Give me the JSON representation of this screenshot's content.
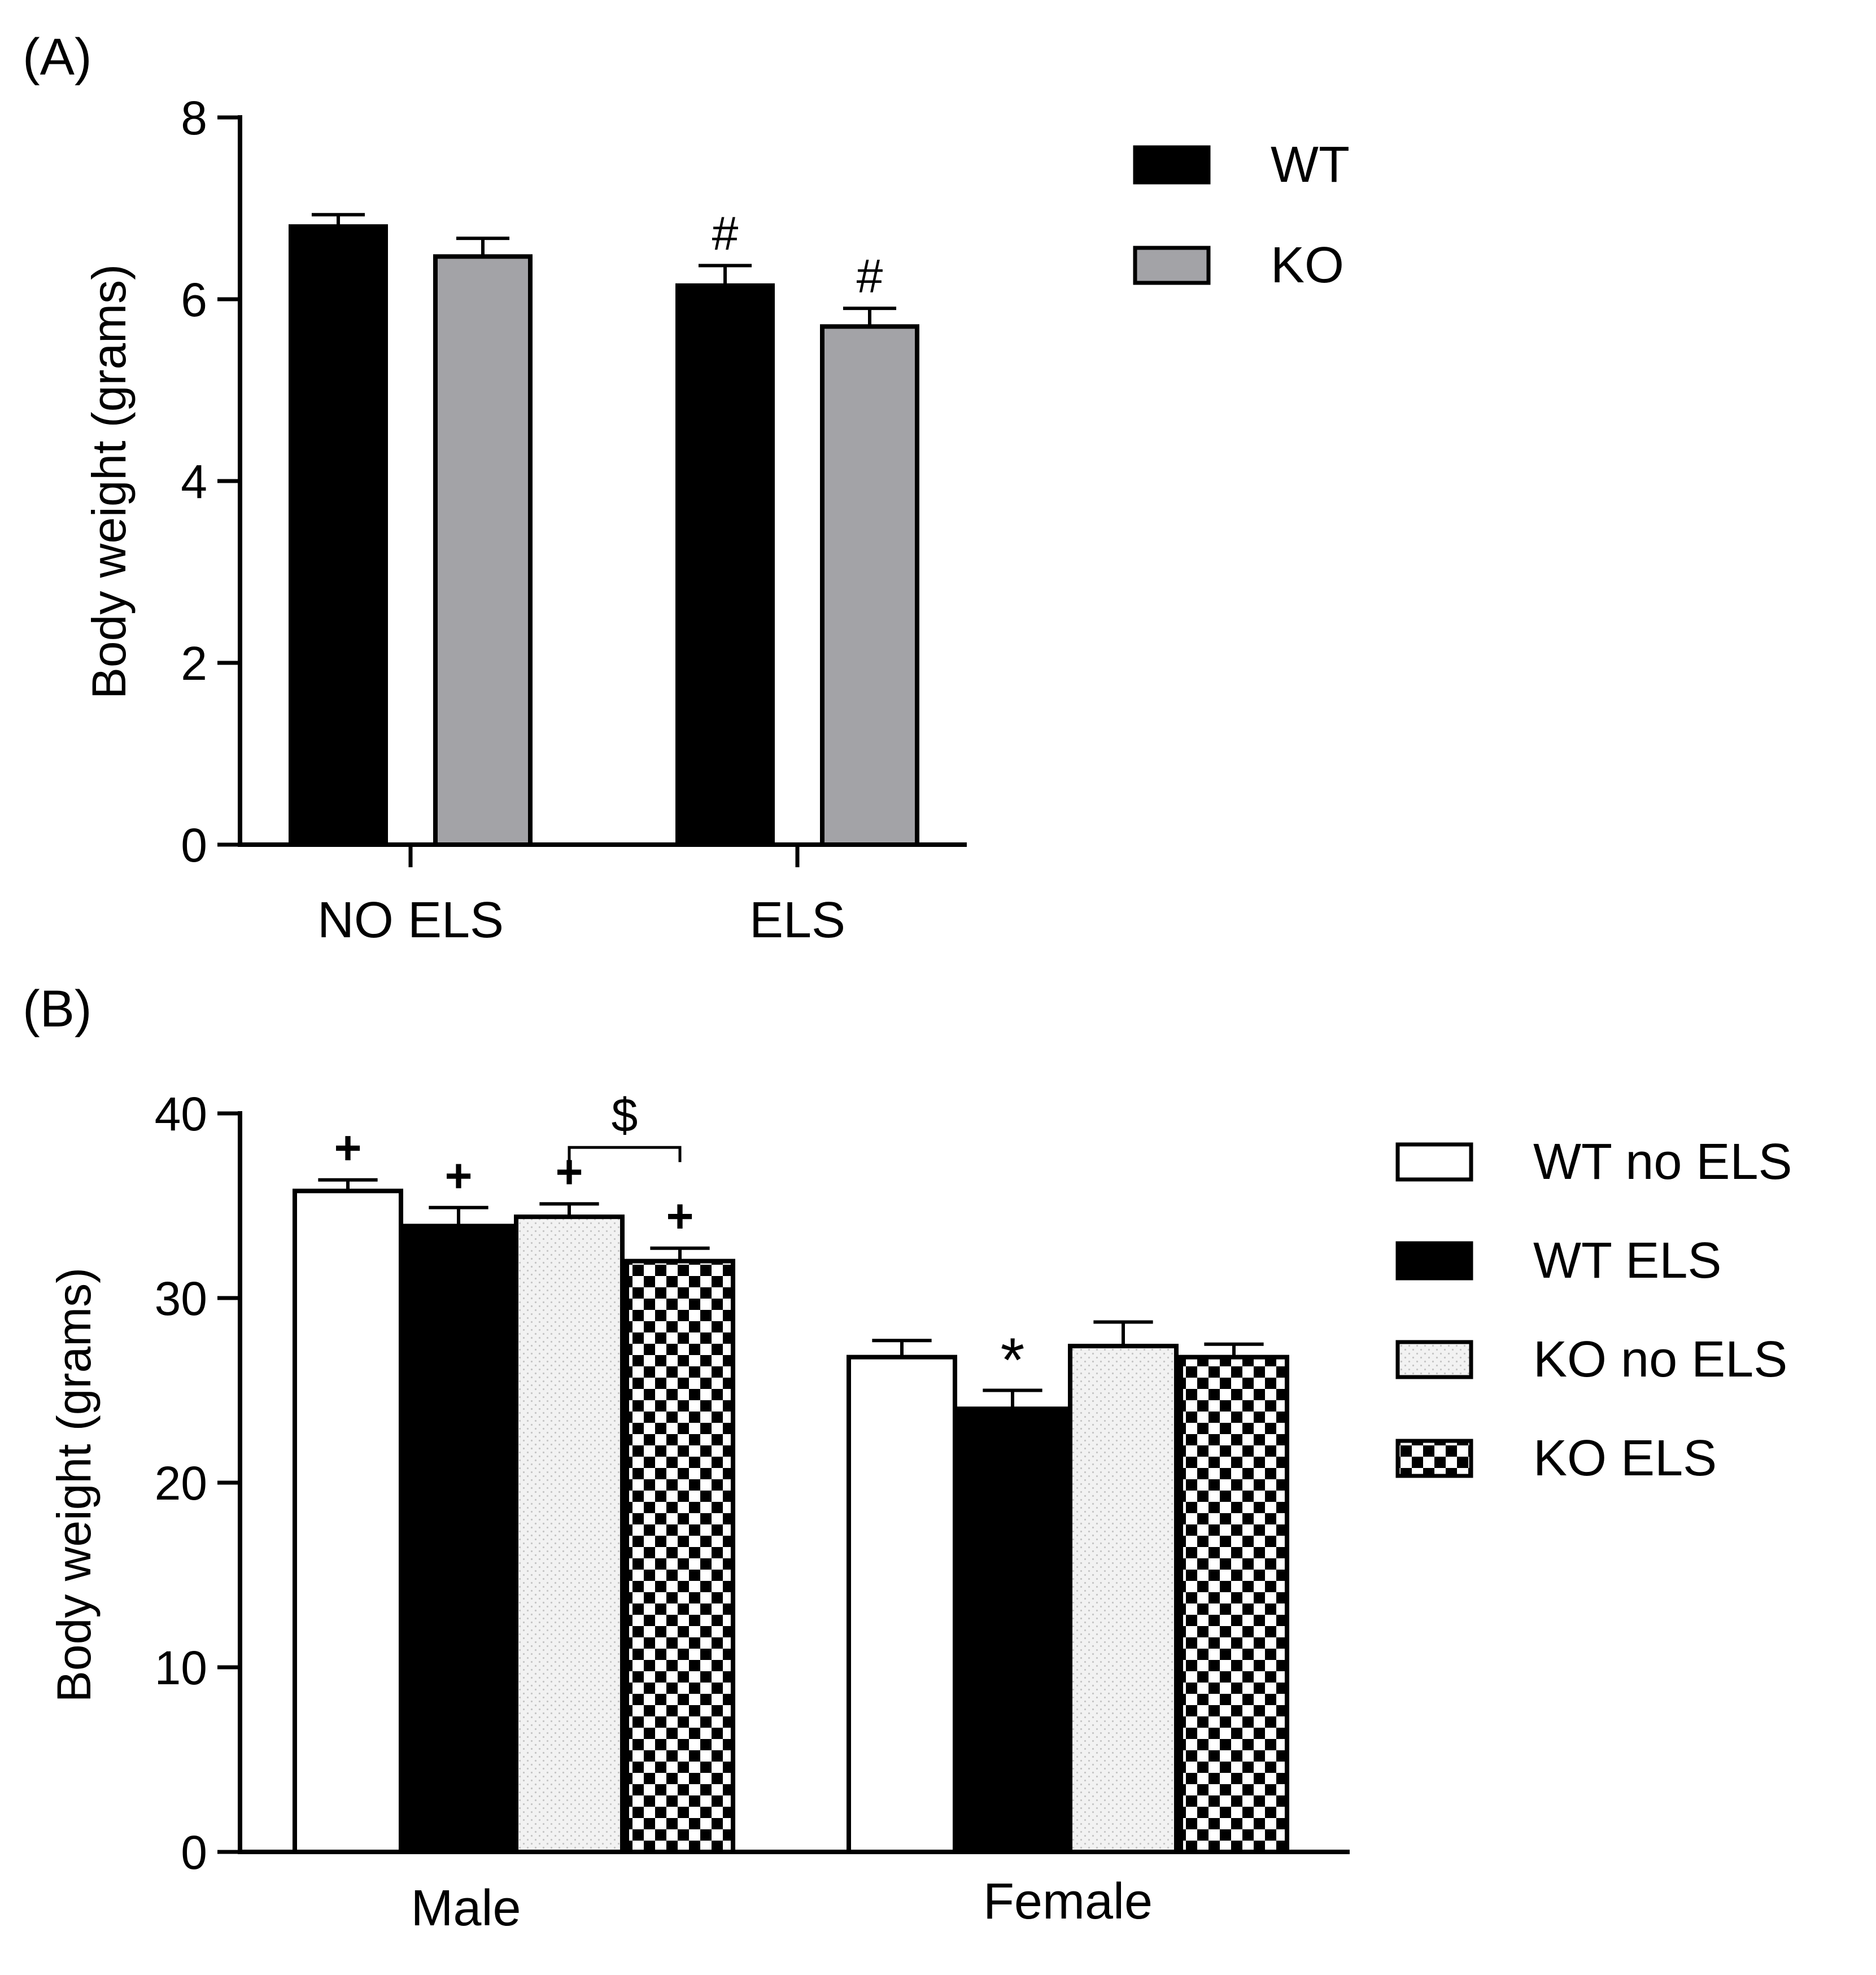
{
  "chart_data": [
    {
      "panel_label": "(A)",
      "type": "bar",
      "ylabel": "Body weight (grams)",
      "ylim": [
        0,
        8
      ],
      "y_ticks": [
        0,
        2,
        4,
        6,
        8
      ],
      "categories": [
        "NO ELS",
        "ELS"
      ],
      "series": [
        {
          "name": "WT",
          "color": "#000000",
          "pattern": "solid",
          "values": [
            6.8,
            6.15
          ],
          "errors": [
            0.13,
            0.22
          ],
          "annotations": [
            "",
            "#"
          ]
        },
        {
          "name": "KO",
          "color": "#a3a3a7",
          "pattern": "solid",
          "values": [
            6.47,
            5.7
          ],
          "errors": [
            0.2,
            0.2
          ],
          "annotations": [
            "",
            "#"
          ]
        }
      ],
      "legend_position": "top-right"
    },
    {
      "panel_label": "(B)",
      "type": "bar",
      "ylabel": "Body weight (grams)",
      "ylim": [
        0,
        40
      ],
      "y_ticks": [
        0,
        10,
        20,
        30,
        40
      ],
      "categories": [
        "Male",
        "Female"
      ],
      "series": [
        {
          "name": "WT no ELS",
          "color": "#ffffff",
          "pattern": "white",
          "values": [
            35.8,
            26.8
          ],
          "errors": [
            0.6,
            0.9
          ],
          "annotations": [
            "+",
            ""
          ]
        },
        {
          "name": "WT ELS",
          "color": "#000000",
          "pattern": "solid",
          "values": [
            33.9,
            24.0
          ],
          "errors": [
            1.0,
            1.0
          ],
          "annotations": [
            "+",
            "*"
          ]
        },
        {
          "name": "KO no ELS",
          "color": "#e4e4e4",
          "pattern": "dotted",
          "values": [
            34.4,
            27.4
          ],
          "errors": [
            0.7,
            1.3
          ],
          "annotations": [
            "+",
            ""
          ]
        },
        {
          "name": "KO ELS",
          "color": "#000000",
          "pattern": "checker",
          "values": [
            32.0,
            26.8
          ],
          "errors": [
            0.7,
            0.7
          ],
          "annotations": [
            "+",
            ""
          ]
        }
      ],
      "bracket": {
        "group": "Male",
        "from_series": "KO no ELS",
        "to_series": "KO ELS",
        "label": "$"
      },
      "legend_position": "top-right"
    }
  ]
}
